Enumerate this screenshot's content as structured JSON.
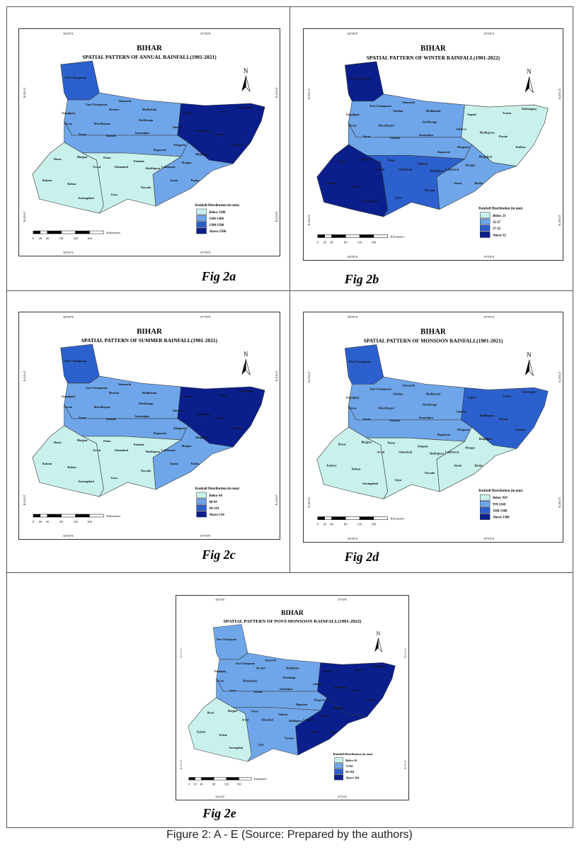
{
  "colors": [
    "#c8f1ec",
    "#6fa6ea",
    "#2c60cc",
    "#0b1f8c"
  ],
  "common": {
    "state": "BIHAR",
    "legend_title": "Rainfall Distribution (in mm)",
    "scale_unit": "Kilometers",
    "scale_ticks": [
      "0",
      "20",
      "40",
      "80",
      "120",
      "160"
    ],
    "lon_labels": [
      "84°0'0\"E",
      "87°0'0\"E"
    ],
    "lat_labels": [
      "27°0'0\"N",
      "25°0'0\"N"
    ],
    "north": "N"
  },
  "districts": [
    "West Champaran",
    "East Champaran",
    "Sitamarhi",
    "Sheohar",
    "Madhubani",
    "Supaul",
    "Araria",
    "Kishanganj",
    "Gopalganj",
    "Siwan",
    "Muzaffarpur",
    "Darbhanga",
    "Saran",
    "Vaishali",
    "Samastipur",
    "Saharsa",
    "Madhepura",
    "Purnia",
    "Katihar",
    "Buxar",
    "Bhojpur",
    "Patna",
    "Begusarai",
    "Khagaria",
    "Bhagalpur",
    "Munger",
    "Lakhisarai",
    "Sheikhpura",
    "Nalanda",
    "Arwal",
    "Jehanabad",
    "Kaimur",
    "Rohtas",
    "Aurangabad",
    "Gaya",
    "Nawada",
    "Jamui",
    "Banka"
  ],
  "maps": [
    {
      "fig": "Fig 2a",
      "subtitle": "SPATIAL PATTERN OF ANNUAL RAINFALL(1901-2021)",
      "legend": [
        "Below 1100",
        "1100-1300",
        "1300-1500",
        "Above 1500"
      ]
    },
    {
      "fig": "Fig 2b",
      "subtitle": "SPATIAL PATTERN OF WINTER RAINFALL(1901-2022)",
      "legend": [
        "Below 23",
        "22-27",
        "27-32",
        "Above 32"
      ]
    },
    {
      "fig": "Fig 2c",
      "subtitle": "SPATIAL PATTERN OF SUMMER RAINFALL(1901-2021)",
      "legend": [
        "Below 60",
        "60-94",
        "94-134",
        "Above 134"
      ]
    },
    {
      "fig": "Fig 2d",
      "subtitle": "SPATIAL PATTERN OF MONSOON RAINFALL(1901-2021)",
      "legend": [
        "Below 959",
        "959-1160",
        "1160-1360",
        "Above 1360"
      ]
    },
    {
      "fig": "Fig 2e",
      "subtitle": "SPATIAL PATTERN OF POST-MONSOON RAINFALL(1901-2022)",
      "legend": [
        "Below 61",
        "72-84",
        "84-104",
        "Above 104"
      ]
    }
  ],
  "caption": "Figure 2: A - E (Source: Prepared by the authors)"
}
